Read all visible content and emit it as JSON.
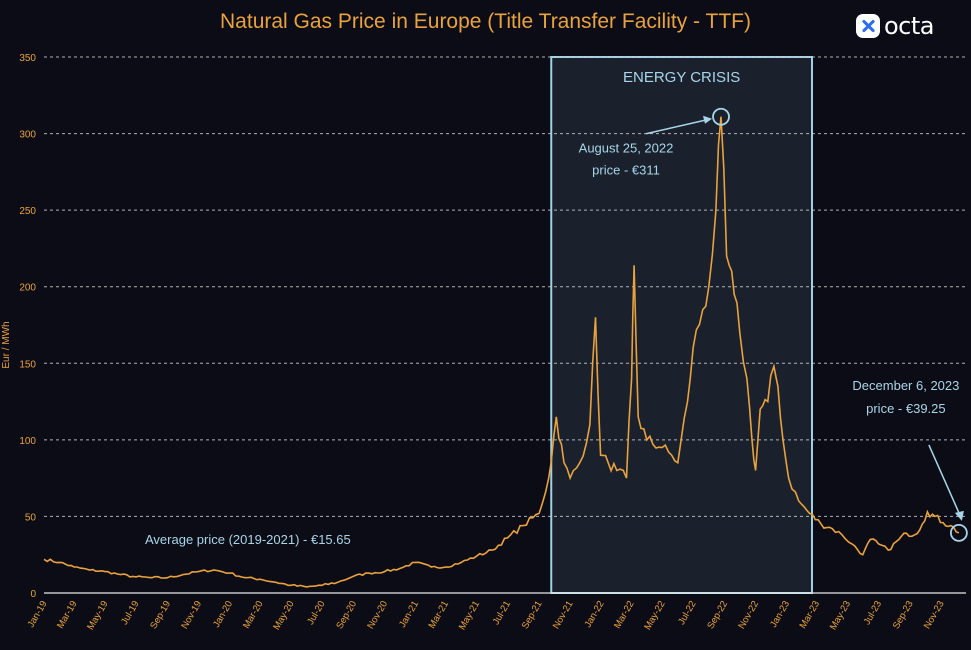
{
  "chart_data": {
    "type": "line",
    "title": "Natural Gas Price in Europe (Title Transfer Facility - TTF)",
    "ylabel": "Eur / MWh",
    "xlabel": "",
    "ylim": [
      0,
      350
    ],
    "yticks": [
      0,
      50,
      100,
      150,
      200,
      250,
      300,
      350
    ],
    "xticks": [
      "Jan-19",
      "Mar-19",
      "May-19",
      "Jul-19",
      "Sep-19",
      "Nov-19",
      "Jan-20",
      "Mar-20",
      "May-20",
      "Jul-20",
      "Sep-20",
      "Nov-20",
      "Jan-21",
      "Mar-21",
      "May-21",
      "Jul-21",
      "Sep-21",
      "Nov-21",
      "Jan-22",
      "Mar-22",
      "May-22",
      "Jul-22",
      "Sep-22",
      "Nov-22",
      "Jan-23",
      "Mar-23",
      "May-23",
      "Jul-23",
      "Sep-23",
      "Nov-23"
    ],
    "grid": "horizontal dashed",
    "line_color": "#e8a23e",
    "series": [
      {
        "values": [
          [
            "2019-01-01",
            22
          ],
          [
            "2019-02-01",
            20
          ],
          [
            "2019-03-01",
            17
          ],
          [
            "2019-04-01",
            15
          ],
          [
            "2019-05-01",
            14
          ],
          [
            "2019-06-01",
            12
          ],
          [
            "2019-07-01",
            10.5
          ],
          [
            "2019-08-01",
            10
          ],
          [
            "2019-09-01",
            10
          ],
          [
            "2019-10-01",
            12
          ],
          [
            "2019-11-01",
            14
          ],
          [
            "2019-12-01",
            15
          ],
          [
            "2020-01-01",
            13
          ],
          [
            "2020-02-01",
            10
          ],
          [
            "2020-03-01",
            9
          ],
          [
            "2020-04-01",
            7
          ],
          [
            "2020-05-01",
            5
          ],
          [
            "2020-06-01",
            4
          ],
          [
            "2020-07-01",
            5
          ],
          [
            "2020-08-01",
            7
          ],
          [
            "2020-09-01",
            11
          ],
          [
            "2020-10-01",
            13
          ],
          [
            "2020-11-01",
            14
          ],
          [
            "2020-12-01",
            16
          ],
          [
            "2021-01-01",
            20
          ],
          [
            "2021-02-01",
            17
          ],
          [
            "2021-03-01",
            17
          ],
          [
            "2021-04-01",
            20
          ],
          [
            "2021-05-01",
            24
          ],
          [
            "2021-06-01",
            28
          ],
          [
            "2021-07-01",
            36
          ],
          [
            "2021-08-01",
            44
          ],
          [
            "2021-09-01",
            52
          ],
          [
            "2021-09-20",
            75
          ],
          [
            "2021-10-05",
            115
          ],
          [
            "2021-10-20",
            85
          ],
          [
            "2021-11-01",
            75
          ],
          [
            "2021-11-20",
            85
          ],
          [
            "2021-12-10",
            110
          ],
          [
            "2021-12-21",
            180
          ],
          [
            "2021-12-31",
            90
          ],
          [
            "2022-01-15",
            85
          ],
          [
            "2022-02-01",
            80
          ],
          [
            "2022-02-20",
            75
          ],
          [
            "2022-03-02",
            140
          ],
          [
            "2022-03-07",
            214
          ],
          [
            "2022-03-15",
            115
          ],
          [
            "2022-04-01",
            100
          ],
          [
            "2022-05-01",
            95
          ],
          [
            "2022-05-20",
            90
          ],
          [
            "2022-06-01",
            85
          ],
          [
            "2022-06-20",
            125
          ],
          [
            "2022-07-01",
            160
          ],
          [
            "2022-07-20",
            185
          ],
          [
            "2022-08-01",
            200
          ],
          [
            "2022-08-15",
            250
          ],
          [
            "2022-08-25",
            311
          ],
          [
            "2022-09-05",
            220
          ],
          [
            "2022-09-20",
            195
          ],
          [
            "2022-10-01",
            170
          ],
          [
            "2022-10-15",
            140
          ],
          [
            "2022-10-25",
            100
          ],
          [
            "2022-11-01",
            80
          ],
          [
            "2022-11-10",
            120
          ],
          [
            "2022-11-25",
            125
          ],
          [
            "2022-12-07",
            148
          ],
          [
            "2022-12-15",
            135
          ],
          [
            "2022-12-25",
            100
          ],
          [
            "2023-01-05",
            75
          ],
          [
            "2023-01-25",
            60
          ],
          [
            "2023-02-15",
            52
          ],
          [
            "2023-03-10",
            45
          ],
          [
            "2023-04-01",
            42
          ],
          [
            "2023-04-20",
            38
          ],
          [
            "2023-05-10",
            32
          ],
          [
            "2023-05-31",
            25
          ],
          [
            "2023-06-15",
            35
          ],
          [
            "2023-07-01",
            32
          ],
          [
            "2023-07-20",
            28
          ],
          [
            "2023-08-10",
            35
          ],
          [
            "2023-08-25",
            39
          ],
          [
            "2023-09-10",
            38
          ],
          [
            "2023-09-25",
            45
          ],
          [
            "2023-10-05",
            53
          ],
          [
            "2023-10-20",
            50
          ],
          [
            "2023-11-05",
            46
          ],
          [
            "2023-11-20",
            44
          ],
          [
            "2023-12-06",
            39.25
          ]
        ]
      }
    ],
    "highlight": {
      "label": "ENERGY CRISIS",
      "x_start": "2021-09-25",
      "x_end": "2023-02-20"
    },
    "annotations": [
      {
        "line1": "August 25, 2022",
        "line2": "price - €311",
        "x": "2022-08-25",
        "y": 311
      },
      {
        "line1": "December  6, 2023",
        "line2": "price - €39.25",
        "x": "2023-12-06",
        "y": 39.25
      },
      {
        "text": "Average price (2019-2021) - €15.65"
      }
    ]
  },
  "brand": {
    "name": "octa"
  }
}
